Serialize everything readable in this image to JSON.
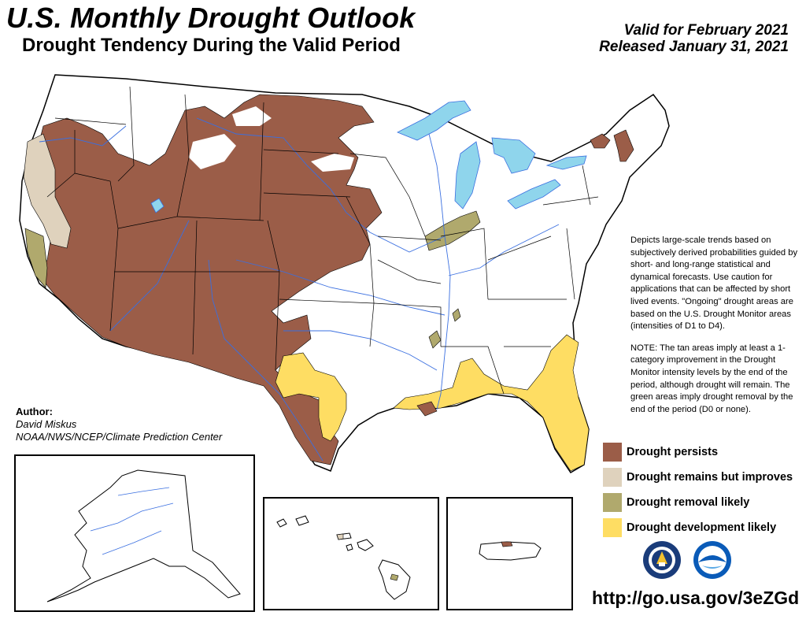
{
  "header": {
    "title": "U.S. Monthly Drought Outlook",
    "subtitle": "Drought Tendency During the Valid Period",
    "valid_line": "Valid for February 2021",
    "released_line": "Released January 31, 2021"
  },
  "description": {
    "paragraph_1": "Depicts large-scale trends based on subjectively derived probabilities guided by short- and long-range statistical and dynamical forecasts. Use caution for applications that can be affected by short lived events. \"Ongoing\" drought areas are based on the U.S. Drought Monitor areas (intensities of D1 to D4).",
    "paragraph_2": "NOTE: The tan areas imply at least a 1-category improvement in the Drought Monitor intensity levels by the end of the period, although drought will remain. The green areas imply drought removal by the end of the period (D0 or none)."
  },
  "author": {
    "label": "Author:",
    "name": "David Miskus",
    "org": "NOAA/NWS/NCEP/Climate Prediction Center"
  },
  "legend": {
    "items": [
      {
        "label": "Drought persists",
        "color": "#9b5d48"
      },
      {
        "label": "Drought remains but improves",
        "color": "#dfd2bd"
      },
      {
        "label": "Drought removal likely",
        "color": "#b0a96d"
      },
      {
        "label": "Drought development likely",
        "color": "#fedd63"
      }
    ]
  },
  "colors": {
    "persists": "#9b5d48",
    "improves": "#dfd2bd",
    "removal": "#b0a96d",
    "development": "#fedd63",
    "water": "#8fd5ec",
    "rivers": "#3a6fe0"
  },
  "logos": [
    {
      "name": "noaa-nws-seal-icon"
    },
    {
      "name": "noaa-logo-icon"
    }
  ],
  "link": {
    "url": "http://go.usa.gov/3eZGd"
  }
}
